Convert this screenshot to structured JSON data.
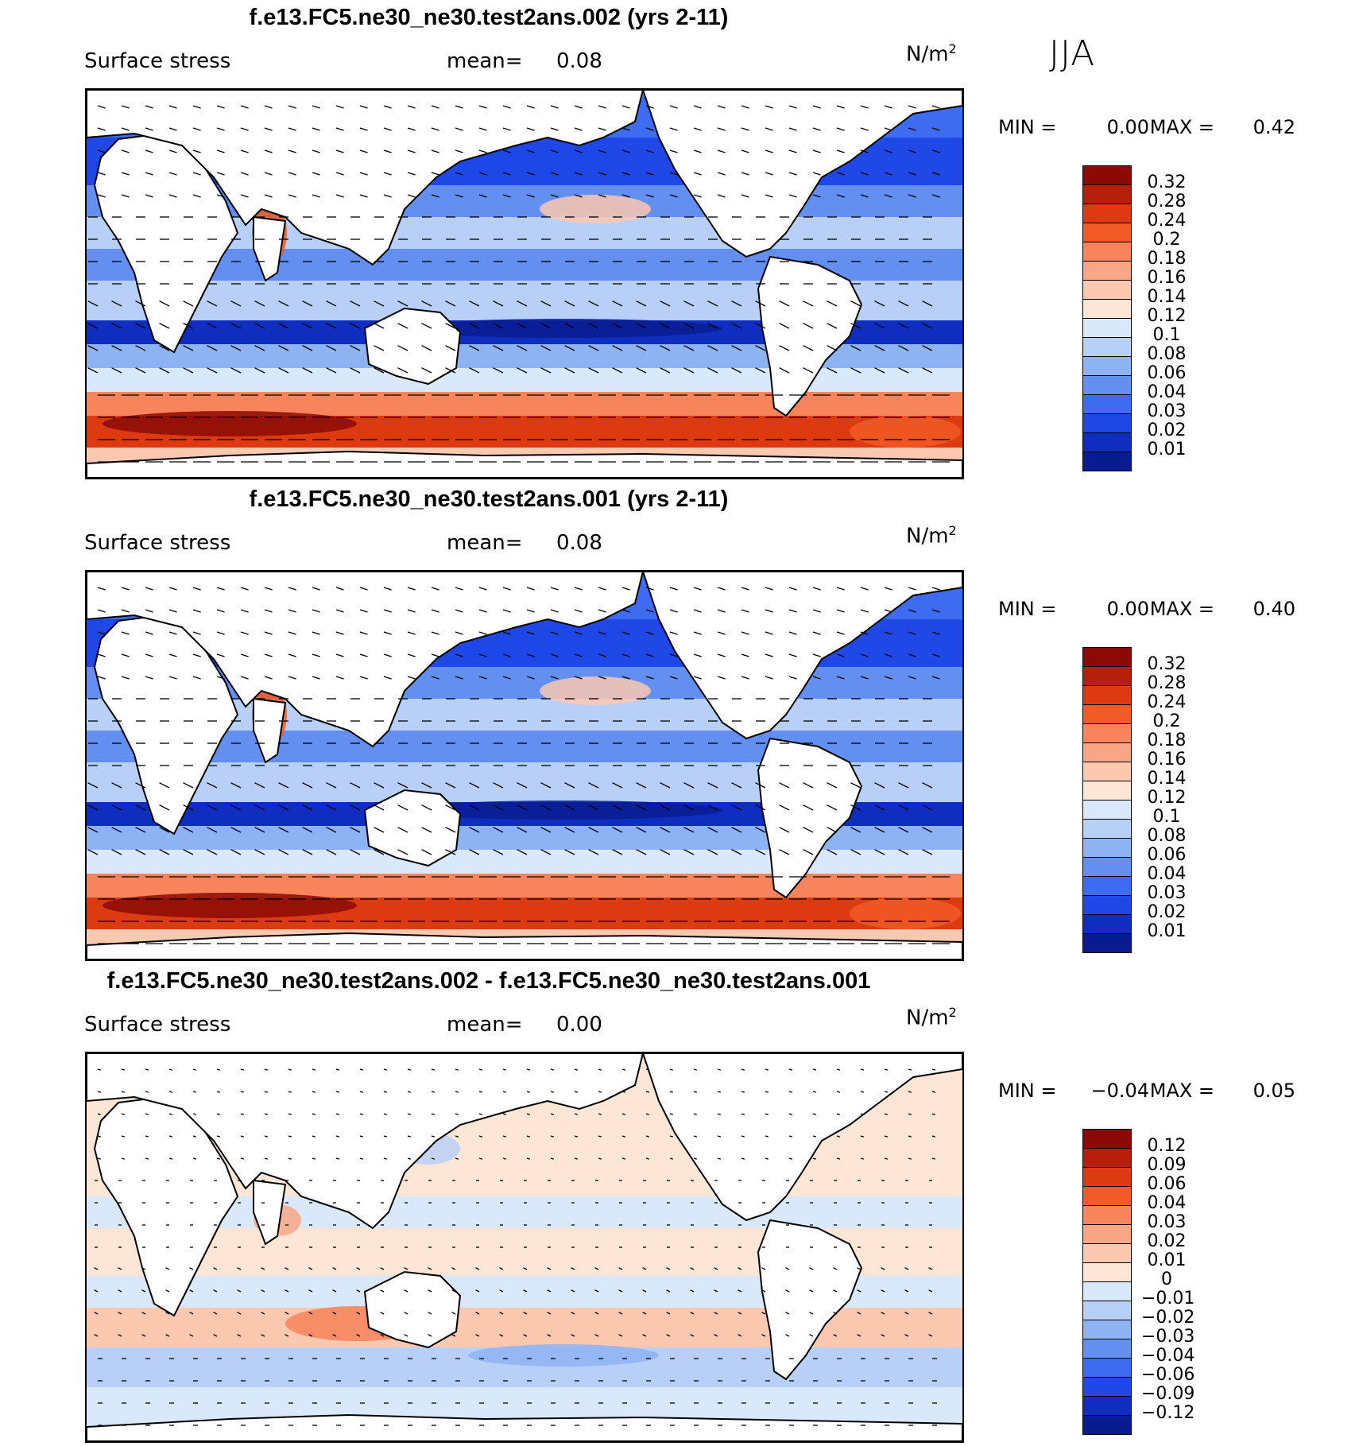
{
  "season": "JJA",
  "panels": [
    {
      "title": "f.e13.FC5.ne30_ne30.test2ans.002 (yrs 2-11)",
      "variable": "Surface stress",
      "mean_label": "mean=",
      "mean_value": "0.08",
      "units": "N/m",
      "units_exp": "2",
      "min_label": "MIN =",
      "min_value": "0.00",
      "max_label": "MAX =",
      "max_value": "0.42",
      "colorbar_labels": [
        "0.32",
        "0.28",
        "0.24",
        "0.2",
        "0.18",
        "0.16",
        "0.14",
        "0.12",
        "0.1",
        "0.08",
        "0.06",
        "0.04",
        "0.03",
        "0.02",
        "0.01"
      ],
      "colorbar_colors": [
        "#8b0a05",
        "#b5200c",
        "#dd3a12",
        "#f25b26",
        "#f7845a",
        "#f9a686",
        "#fcc8b0",
        "#fde6d6",
        "#d9e8fb",
        "#b8d0f7",
        "#8eb3f2",
        "#628ff0",
        "#3d6cf0",
        "#1f48e6",
        "#0f2ec0",
        "#081b8f"
      ],
      "map_style": "magnitude"
    },
    {
      "title": "f.e13.FC5.ne30_ne30.test2ans.001 (yrs 2-11)",
      "variable": "Surface stress",
      "mean_label": "mean=",
      "mean_value": "0.08",
      "units": "N/m",
      "units_exp": "2",
      "min_label": "MIN =",
      "min_value": "0.00",
      "max_label": "MAX =",
      "max_value": "0.40",
      "colorbar_labels": [
        "0.32",
        "0.28",
        "0.24",
        "0.2",
        "0.18",
        "0.16",
        "0.14",
        "0.12",
        "0.1",
        "0.08",
        "0.06",
        "0.04",
        "0.03",
        "0.02",
        "0.01"
      ],
      "colorbar_colors": [
        "#8b0a05",
        "#b5200c",
        "#dd3a12",
        "#f25b26",
        "#f7845a",
        "#f9a686",
        "#fcc8b0",
        "#fde6d6",
        "#d9e8fb",
        "#b8d0f7",
        "#8eb3f2",
        "#628ff0",
        "#3d6cf0",
        "#1f48e6",
        "#0f2ec0",
        "#081b8f"
      ],
      "map_style": "magnitude"
    },
    {
      "title": "f.e13.FC5.ne30_ne30.test2ans.002 - f.e13.FC5.ne30_ne30.test2ans.001",
      "variable": "Surface stress",
      "mean_label": "mean=",
      "mean_value": "0.00",
      "units": "N/m",
      "units_exp": "2",
      "min_label": "MIN =",
      "min_value": "−0.04",
      "max_label": "MAX =",
      "max_value": "0.05",
      "colorbar_labels": [
        "0.12",
        "0.09",
        "0.06",
        "0.04",
        "0.03",
        "0.02",
        "0.01",
        "0",
        "−0.01",
        "−0.02",
        "−0.03",
        "−0.04",
        "−0.06",
        "−0.09",
        "−0.12"
      ],
      "colorbar_colors": [
        "#8b0a05",
        "#b5200c",
        "#dd3a12",
        "#f25b26",
        "#f7845a",
        "#f9a686",
        "#fcc8b0",
        "#fde6d6",
        "#d9e8fb",
        "#b8d0f7",
        "#8eb3f2",
        "#628ff0",
        "#3d6cf0",
        "#1f48e6",
        "#0f2ec0",
        "#081b8f"
      ],
      "map_style": "difference"
    }
  ]
}
